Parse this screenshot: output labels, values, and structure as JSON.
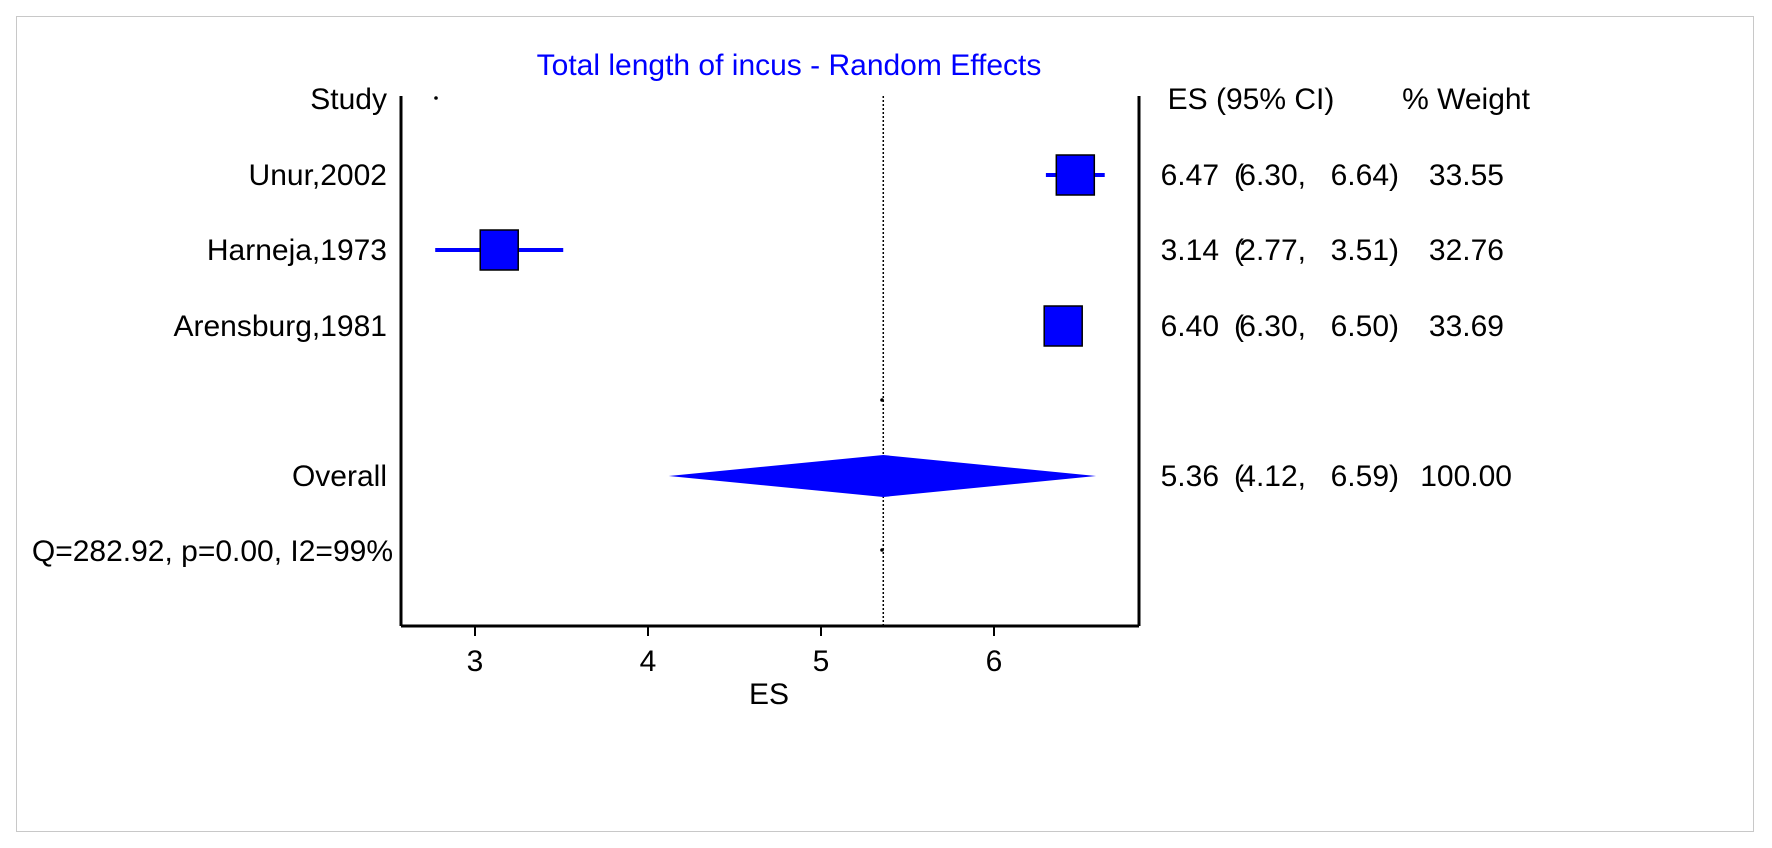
{
  "chart_data": {
    "type": "forest",
    "title": "Total length of incus - Random Effects",
    "xlabel": "ES",
    "xlim": [
      2.55,
      6.82
    ],
    "x_ticks": [
      3,
      4,
      5,
      6
    ],
    "headers": {
      "study": "Study",
      "es": "ES (95% CI)",
      "weight": "% Weight"
    },
    "studies": [
      {
        "name": "Unur,2002",
        "es": 6.47,
        "lower": 6.3,
        "upper": 6.64,
        "weight": 33.55,
        "es_text": "6.47",
        "lower_text": "6.30",
        "upper_text": "6.64",
        "weight_text": "33.55"
      },
      {
        "name": "Harneja,1973",
        "es": 3.14,
        "lower": 2.77,
        "upper": 3.51,
        "weight": 32.76,
        "es_text": "3.14",
        "lower_text": "2.77",
        "upper_text": "3.51",
        "weight_text": "32.76"
      },
      {
        "name": "Arensburg,1981",
        "es": 6.4,
        "lower": 6.3,
        "upper": 6.5,
        "weight": 33.69,
        "es_text": "6.40",
        "lower_text": "6.30",
        "upper_text": "6.50",
        "weight_text": "33.69"
      }
    ],
    "overall": {
      "label": "Overall",
      "es": 5.36,
      "lower": 4.12,
      "upper": 6.59,
      "weight": 100.0,
      "es_text": "5.36",
      "lower_text": "4.12",
      "upper_text": "6.59",
      "weight_text": "100.00"
    },
    "heterogeneity": "Q=282.92, p=0.00, I2=99%",
    "colors": {
      "title": "#0000ff",
      "marker": "#0000ff",
      "axis": "#000000"
    }
  }
}
